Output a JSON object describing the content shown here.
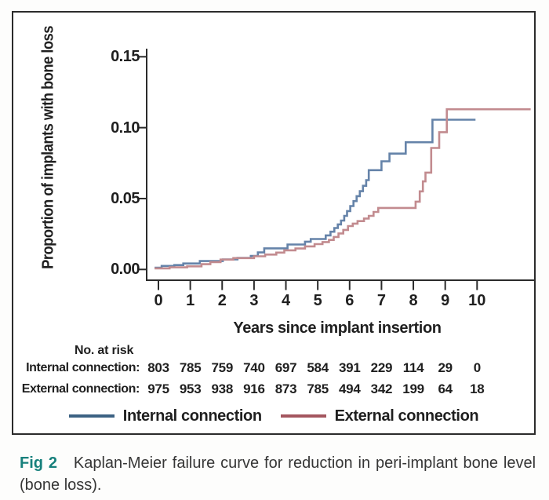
{
  "figure": {
    "caption": {
      "label": "Fig 2",
      "label_color": "#17807c",
      "text": "Kaplan-Meier failure curve for reduction in peri-implant bone level (bone loss)."
    }
  },
  "chart_data": {
    "type": "line",
    "variant": "kaplan_meier_failure_step",
    "title": "",
    "xlabel": "Years since implant insertion",
    "ylabel": "Proportion of implants with bone loss",
    "xlim": [
      -0.3,
      11.8
    ],
    "ylim": [
      0,
      0.155
    ],
    "grid": false,
    "legend_position": "bottom",
    "xticks": [
      0,
      1,
      2,
      3,
      4,
      5,
      6,
      7,
      8,
      9,
      10
    ],
    "yticks": [
      {
        "value": 0.0,
        "label": "0.00"
      },
      {
        "value": 0.05,
        "label": "0.05"
      },
      {
        "value": 0.1,
        "label": "0.10"
      },
      {
        "value": 0.15,
        "label": "0.15"
      }
    ],
    "axis_color": "#2b2b2b",
    "series": [
      {
        "name": "Internal connection",
        "line_color": "#6583a9",
        "legend_color": "#3c6283",
        "end_year": 9.95,
        "steps": [
          [
            -0.12,
            0.0012
          ],
          [
            0.1,
            0.0025
          ],
          [
            0.5,
            0.0031
          ],
          [
            0.78,
            0.0042
          ],
          [
            1.3,
            0.0059
          ],
          [
            2.02,
            0.0071
          ],
          [
            2.48,
            0.0082
          ],
          [
            2.9,
            0.0096
          ],
          [
            3.12,
            0.012
          ],
          [
            3.32,
            0.0149
          ],
          [
            4.05,
            0.0176
          ],
          [
            4.6,
            0.0196
          ],
          [
            4.78,
            0.0215
          ],
          [
            5.25,
            0.024
          ],
          [
            5.4,
            0.0266
          ],
          [
            5.52,
            0.0292
          ],
          [
            5.63,
            0.0318
          ],
          [
            5.73,
            0.0345
          ],
          [
            5.83,
            0.0378
          ],
          [
            5.92,
            0.0412
          ],
          [
            6.02,
            0.0447
          ],
          [
            6.12,
            0.0482
          ],
          [
            6.22,
            0.0517
          ],
          [
            6.32,
            0.0552
          ],
          [
            6.42,
            0.059
          ],
          [
            6.52,
            0.063
          ],
          [
            6.6,
            0.07
          ],
          [
            7.0,
            0.0763
          ],
          [
            7.25,
            0.0817
          ],
          [
            7.76,
            0.0897
          ],
          [
            8.6,
            0.1056
          ]
        ]
      },
      {
        "name": "External connection",
        "line_color": "#c28b8f",
        "legend_color": "#a4565f",
        "end_year": 11.68,
        "steps": [
          [
            -0.12,
            0.0008
          ],
          [
            0.35,
            0.0015
          ],
          [
            0.9,
            0.0022
          ],
          [
            1.35,
            0.0037
          ],
          [
            1.63,
            0.0052
          ],
          [
            1.95,
            0.007
          ],
          [
            2.35,
            0.008
          ],
          [
            3.0,
            0.0093
          ],
          [
            3.35,
            0.0105
          ],
          [
            3.7,
            0.0119
          ],
          [
            3.95,
            0.0135
          ],
          [
            4.3,
            0.0148
          ],
          [
            4.6,
            0.0163
          ],
          [
            4.9,
            0.0179
          ],
          [
            5.15,
            0.0193
          ],
          [
            5.35,
            0.0208
          ],
          [
            5.5,
            0.0229
          ],
          [
            5.65,
            0.0254
          ],
          [
            5.8,
            0.0279
          ],
          [
            5.95,
            0.0306
          ],
          [
            6.1,
            0.0323
          ],
          [
            6.25,
            0.0341
          ],
          [
            6.45,
            0.0359
          ],
          [
            6.6,
            0.0378
          ],
          [
            6.75,
            0.0406
          ],
          [
            6.9,
            0.0434
          ],
          [
            8.07,
            0.0478
          ],
          [
            8.2,
            0.0551
          ],
          [
            8.3,
            0.0621
          ],
          [
            8.38,
            0.0683
          ],
          [
            8.56,
            0.0857
          ],
          [
            8.81,
            0.0968
          ],
          [
            9.05,
            0.113
          ]
        ]
      }
    ],
    "risk_table": {
      "title": "No. at risk",
      "rows": [
        {
          "label": "Internal connection:",
          "values": [
            803,
            785,
            759,
            740,
            697,
            584,
            391,
            229,
            114,
            29,
            0
          ]
        },
        {
          "label": "External connection:",
          "values": [
            975,
            953,
            938,
            916,
            873,
            785,
            494,
            342,
            199,
            64,
            18
          ]
        }
      ]
    }
  }
}
